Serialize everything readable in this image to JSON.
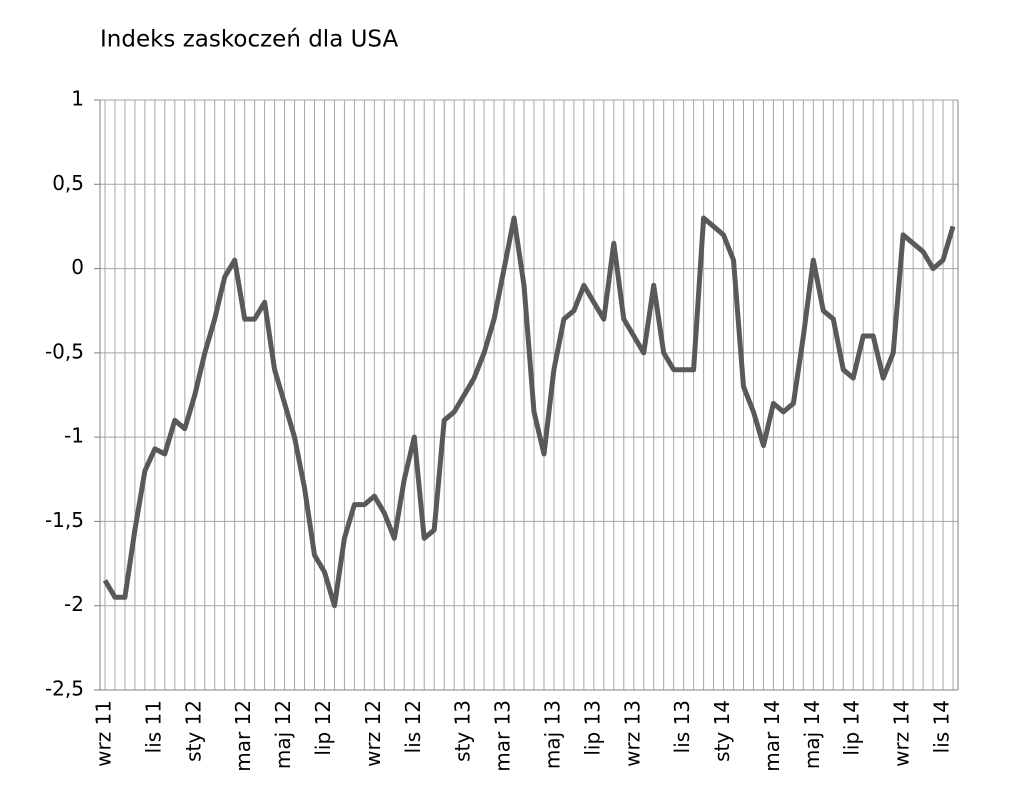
{
  "chart_data": {
    "type": "line",
    "title": "Indeks zaskoczeń dla USA",
    "categories": [
      "wrz 11",
      null,
      null,
      null,
      null,
      "lis 11",
      null,
      null,
      null,
      "sty 12",
      null,
      null,
      null,
      null,
      "mar 12",
      null,
      null,
      null,
      "maj 12",
      null,
      null,
      null,
      "lip 12",
      null,
      null,
      null,
      null,
      "wrz 12",
      null,
      null,
      null,
      "lis 12",
      null,
      null,
      null,
      null,
      "sty 13",
      null,
      null,
      null,
      "mar 13",
      null,
      null,
      null,
      null,
      "maj 13",
      null,
      null,
      null,
      "lip 13",
      null,
      null,
      null,
      "wrz 13",
      null,
      null,
      null,
      null,
      "lis 13",
      null,
      null,
      null,
      "sty 14",
      null,
      null,
      null,
      null,
      "mar 14",
      null,
      null,
      null,
      "maj 14",
      null,
      null,
      null,
      "lip 14",
      null,
      null,
      null,
      null,
      "wrz 14",
      null,
      null,
      null,
      "lis 14",
      null
    ],
    "series": [
      {
        "name": "Indeks zaskoczeń",
        "color": "#595959",
        "values": [
          -1.85,
          -1.95,
          -1.95,
          -1.55,
          -1.2,
          -1.07,
          -1.1,
          -0.9,
          -0.95,
          -0.75,
          -0.5,
          -0.3,
          -0.05,
          0.05,
          -0.3,
          -0.3,
          -0.2,
          -0.6,
          -0.8,
          -1.0,
          -1.3,
          -1.7,
          -1.8,
          -2.0,
          -1.6,
          -1.4,
          -1.4,
          -1.35,
          -1.45,
          -1.6,
          -1.25,
          -1.0,
          -1.6,
          -1.55,
          -0.9,
          -0.85,
          -0.75,
          -0.65,
          -0.5,
          -0.3,
          0.0,
          0.3,
          -0.1,
          -0.85,
          -1.1,
          -0.6,
          -0.3,
          -0.25,
          -0.1,
          -0.2,
          -0.3,
          0.15,
          -0.3,
          -0.4,
          -0.5,
          -0.1,
          -0.5,
          -0.6,
          -0.6,
          -0.6,
          0.3,
          0.25,
          0.2,
          0.05,
          -0.7,
          -0.85,
          -1.05,
          -0.8,
          -0.85,
          -0.8,
          -0.4,
          0.05,
          -0.25,
          -0.3,
          -0.6,
          -0.65,
          -0.4,
          -0.4,
          -0.65,
          -0.5,
          0.2,
          0.15,
          0.1,
          0.0,
          0.05,
          0.25
        ]
      }
    ],
    "ylim": [
      -2.5,
      1
    ],
    "yticks": [
      {
        "value": -2.5,
        "label": "-2,5"
      },
      -2,
      {
        "value": -1.5,
        "label": "-1,5"
      },
      -1,
      {
        "value": -0.5,
        "label": "-0,5"
      },
      0,
      {
        "value": 0.5,
        "label": "0,5"
      },
      1
    ],
    "grid": true
  }
}
